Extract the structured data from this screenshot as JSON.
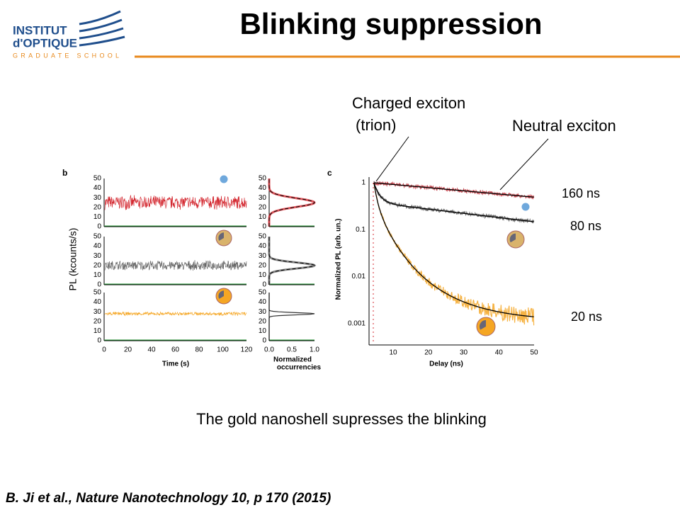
{
  "header": {
    "logo": [
      "INSTITUT",
      "d'OPTIQUE",
      "GRADUATE SCHOOL"
    ],
    "title": "Blinking suppression"
  },
  "figure": {
    "panel_b": {
      "label": "b",
      "trace_yticks": [
        "0",
        "10",
        "20",
        "30",
        "40",
        "50"
      ],
      "trace_xticks": [
        "0",
        "20",
        "40",
        "60",
        "80",
        "100",
        "120"
      ],
      "ylabel": "PL (kcounts/s)",
      "xlabel": "Time (s)",
      "hist_yticks": [
        "0",
        "10",
        "20",
        "30",
        "40",
        "50"
      ],
      "hist_xticks": [
        "0.0",
        "0.5",
        "1.0"
      ],
      "hist_xlabel": [
        "Normalized",
        "occurrencies"
      ]
    },
    "panel_c": {
      "label": "c",
      "yticks": [
        "1",
        "0.1",
        "0.01",
        "0.001"
      ],
      "xticks": [
        "10",
        "20",
        "30",
        "40",
        "50"
      ],
      "ylabel": "Normalized PL (arb. un.)",
      "xlabel": "Delay (ns)"
    }
  },
  "annotations": {
    "charged": [
      "Charged exciton",
      "(trion)"
    ],
    "neutral": "Neutral exciton",
    "lifetimes": [
      "160 ns",
      "80 ns",
      "20 ns"
    ]
  },
  "caption": "The gold nanoshell supresses the blinking",
  "reference": "B. Ji  et al., Nature Nanotechnology 10, p 170  (2015)"
}
